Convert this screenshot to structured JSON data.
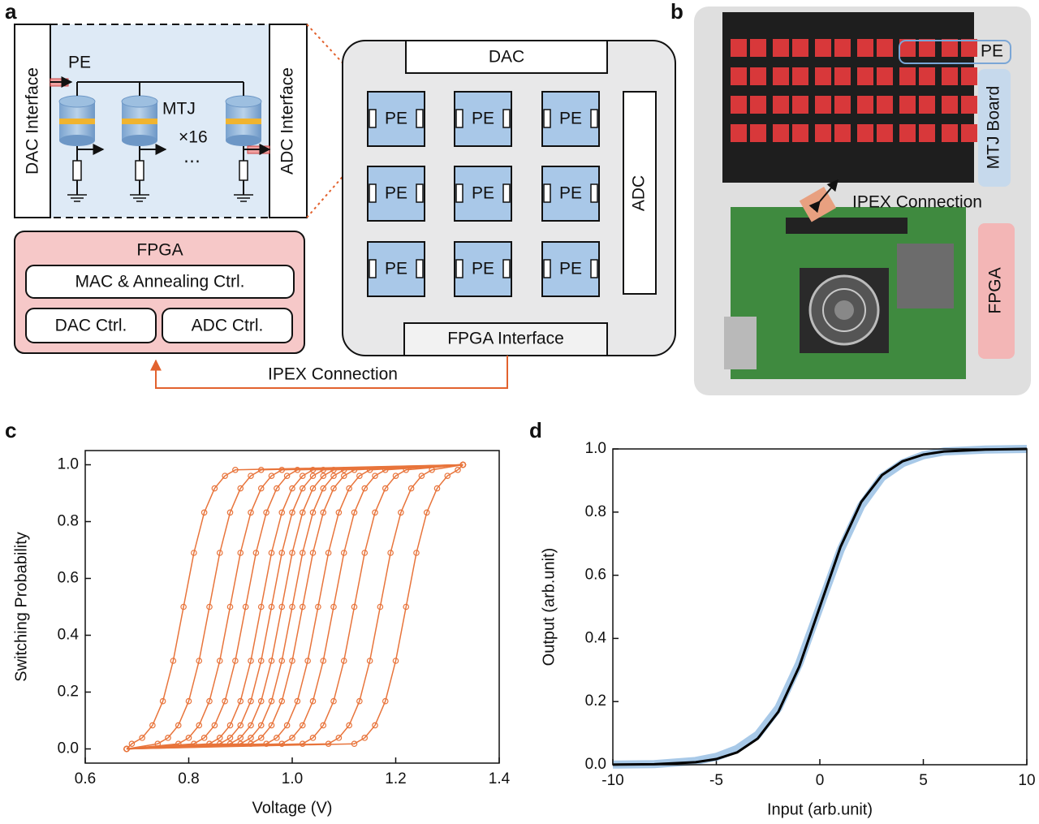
{
  "panel_labels": [
    "a",
    "b",
    "c",
    "d"
  ],
  "diagram": {
    "dac_interface": "DAC Interface",
    "adc_interface": "ADC Interface",
    "pe": "PE",
    "mtj": "MTJ",
    "count": "×16",
    "ellipsis": "⋯",
    "fpga": {
      "title": "FPGA",
      "mac": "MAC & Annealing Ctrl.",
      "dac_ctrl": "DAC Ctrl.",
      "adc_ctrl": "ADC Ctrl."
    },
    "chip": {
      "dac": "DAC",
      "adc": "ADC",
      "fpga_interface": "FPGA Interface",
      "pe_units": [
        "PE",
        "PE",
        "PE",
        "PE",
        "PE",
        "PE",
        "PE",
        "PE",
        "PE"
      ]
    },
    "connection": "IPEX Connection"
  },
  "photo": {
    "pe": "PE",
    "mtj_board": "MTJ Board",
    "connection": "IPEX Connection",
    "fpga": "FPGA"
  },
  "chart_data": [
    {
      "type": "line",
      "marker": "circle",
      "xlabel": "Voltage (V)",
      "ylabel": "Switching Probability",
      "xlim": [
        0.6,
        1.4
      ],
      "xticks": [
        0.6,
        0.8,
        {
          "value": 1.0,
          "label": "1.0"
        },
        1.2,
        1.4
      ],
      "ylim": [
        -0.05,
        1.05
      ],
      "yticks": [
        {
          "value": 0,
          "label": "0.0"
        },
        0.2,
        0.4,
        0.6,
        0.8,
        {
          "value": 1.0,
          "label": "1.0"
        }
      ],
      "series": [
        {
          "color": "#e8743b",
          "x": [
            0.68,
            0.69,
            0.71,
            0.73,
            0.75,
            0.77,
            0.79,
            0.81,
            0.83,
            0.85,
            0.87,
            0.89,
            1.33
          ],
          "values": [
            0,
            0.018,
            0.039,
            0.083,
            0.168,
            0.31,
            0.5,
            0.69,
            0.832,
            0.917,
            0.961,
            0.982,
            1
          ]
        },
        {
          "color": "#e8743b",
          "x": [
            0.68,
            0.74,
            0.76,
            0.78,
            0.8,
            0.82,
            0.84,
            0.86,
            0.88,
            0.9,
            0.92,
            0.94,
            1.33
          ],
          "values": [
            0,
            0.018,
            0.039,
            0.083,
            0.168,
            0.31,
            0.5,
            0.69,
            0.832,
            0.917,
            0.961,
            0.982,
            1
          ]
        },
        {
          "color": "#e8743b",
          "x": [
            0.68,
            0.78,
            0.8,
            0.82,
            0.84,
            0.86,
            0.88,
            0.9,
            0.92,
            0.94,
            0.96,
            0.98,
            1.33
          ],
          "values": [
            0,
            0.018,
            0.039,
            0.083,
            0.168,
            0.31,
            0.5,
            0.69,
            0.832,
            0.917,
            0.961,
            0.982,
            1
          ]
        },
        {
          "color": "#e8743b",
          "x": [
            0.68,
            0.81,
            0.83,
            0.85,
            0.87,
            0.89,
            0.91,
            0.93,
            0.95,
            0.97,
            0.99,
            1.01,
            1.33
          ],
          "values": [
            0,
            0.018,
            0.039,
            0.083,
            0.168,
            0.31,
            0.5,
            0.69,
            0.832,
            0.917,
            0.961,
            0.982,
            1
          ]
        },
        {
          "color": "#e8743b",
          "x": [
            0.68,
            0.84,
            0.86,
            0.88,
            0.9,
            0.92,
            0.94,
            0.96,
            0.98,
            1.0,
            1.02,
            1.04,
            1.33
          ],
          "values": [
            0,
            0.018,
            0.039,
            0.083,
            0.168,
            0.31,
            0.5,
            0.69,
            0.832,
            0.917,
            0.961,
            0.982,
            1
          ]
        },
        {
          "color": "#e8743b",
          "x": [
            0.68,
            0.86,
            0.88,
            0.9,
            0.92,
            0.94,
            0.96,
            0.98,
            1.0,
            1.02,
            1.04,
            1.06,
            1.33
          ],
          "values": [
            0,
            0.018,
            0.039,
            0.083,
            0.168,
            0.31,
            0.5,
            0.69,
            0.832,
            0.917,
            0.961,
            0.982,
            1
          ]
        },
        {
          "color": "#e8743b",
          "x": [
            0.68,
            0.88,
            0.9,
            0.92,
            0.94,
            0.96,
            0.98,
            1.0,
            1.02,
            1.04,
            1.06,
            1.08,
            1.33
          ],
          "values": [
            0,
            0.018,
            0.039,
            0.083,
            0.168,
            0.31,
            0.5,
            0.69,
            0.832,
            0.917,
            0.961,
            0.982,
            1
          ]
        },
        {
          "color": "#e8743b",
          "x": [
            0.68,
            0.9,
            0.92,
            0.94,
            0.96,
            0.98,
            1.0,
            1.02,
            1.04,
            1.06,
            1.08,
            1.1,
            1.33
          ],
          "values": [
            0,
            0.018,
            0.039,
            0.083,
            0.168,
            0.31,
            0.5,
            0.69,
            0.832,
            0.917,
            0.961,
            0.982,
            1
          ]
        },
        {
          "color": "#e8743b",
          "x": [
            0.68,
            0.92,
            0.94,
            0.96,
            0.98,
            1.0,
            1.02,
            1.04,
            1.06,
            1.08,
            1.1,
            1.12,
            1.33
          ],
          "values": [
            0,
            0.018,
            0.039,
            0.083,
            0.168,
            0.31,
            0.5,
            0.69,
            0.832,
            0.917,
            0.961,
            0.982,
            1
          ]
        },
        {
          "color": "#e8743b",
          "x": [
            0.68,
            0.95,
            0.97,
            0.99,
            1.01,
            1.03,
            1.05,
            1.07,
            1.09,
            1.11,
            1.13,
            1.15,
            1.33
          ],
          "values": [
            0,
            0.018,
            0.039,
            0.083,
            0.168,
            0.31,
            0.5,
            0.69,
            0.832,
            0.917,
            0.961,
            0.982,
            1
          ]
        },
        {
          "color": "#e8743b",
          "x": [
            0.68,
            0.98,
            1.0,
            1.02,
            1.04,
            1.06,
            1.08,
            1.1,
            1.12,
            1.14,
            1.16,
            1.18,
            1.33
          ],
          "values": [
            0,
            0.018,
            0.039,
            0.083,
            0.168,
            0.31,
            0.5,
            0.69,
            0.832,
            0.917,
            0.961,
            0.982,
            1
          ]
        },
        {
          "color": "#e8743b",
          "x": [
            0.68,
            1.02,
            1.04,
            1.06,
            1.08,
            1.1,
            1.12,
            1.14,
            1.16,
            1.18,
            1.2,
            1.22,
            1.33
          ],
          "values": [
            0,
            0.018,
            0.039,
            0.083,
            0.168,
            0.31,
            0.5,
            0.69,
            0.832,
            0.917,
            0.961,
            0.982,
            1
          ]
        },
        {
          "color": "#e8743b",
          "x": [
            0.68,
            1.07,
            1.09,
            1.11,
            1.13,
            1.15,
            1.17,
            1.19,
            1.21,
            1.23,
            1.25,
            1.27,
            1.33
          ],
          "values": [
            0,
            0.018,
            0.039,
            0.083,
            0.168,
            0.31,
            0.5,
            0.69,
            0.832,
            0.917,
            0.961,
            0.982,
            1
          ]
        },
        {
          "color": "#e8743b",
          "x": [
            0.68,
            1.12,
            1.14,
            1.16,
            1.18,
            1.2,
            1.22,
            1.24,
            1.26,
            1.28,
            1.3,
            1.32,
            1.33
          ],
          "values": [
            0,
            0.018,
            0.039,
            0.083,
            0.168,
            0.31,
            0.5,
            0.69,
            0.832,
            0.917,
            0.961,
            0.982,
            1
          ]
        }
      ]
    },
    {
      "type": "line",
      "xlabel": "Input (arb.unit)",
      "ylabel": "Output (arb.unit)",
      "xlim": [
        -10,
        10
      ],
      "xticks": [
        -10,
        -5,
        0,
        5,
        10
      ],
      "ylim": [
        0,
        1
      ],
      "yticks": [
        {
          "value": 0,
          "label": "0.0"
        },
        0.2,
        0.4,
        0.6,
        0.8,
        {
          "value": 1.0,
          "label": "1.0"
        }
      ],
      "x": [
        -10,
        -8,
        -6,
        -5,
        -4,
        -3,
        -2,
        -1,
        0,
        1,
        2,
        3,
        4,
        5,
        6,
        8,
        10
      ],
      "series": [
        {
          "color": "#9ec3e6",
          "style": "band",
          "values": [
            0.0005,
            0.002,
            0.012,
            0.025,
            0.05,
            0.095,
            0.18,
            0.32,
            0.5,
            0.68,
            0.82,
            0.91,
            0.955,
            0.98,
            0.992,
            0.998,
            1.0
          ]
        },
        {
          "color": "#000000",
          "style": "line",
          "values": [
            0.0003,
            0.0017,
            0.008,
            0.018,
            0.039,
            0.083,
            0.168,
            0.31,
            0.5,
            0.69,
            0.832,
            0.917,
            0.961,
            0.982,
            0.992,
            0.998,
            1.0
          ]
        }
      ]
    }
  ]
}
